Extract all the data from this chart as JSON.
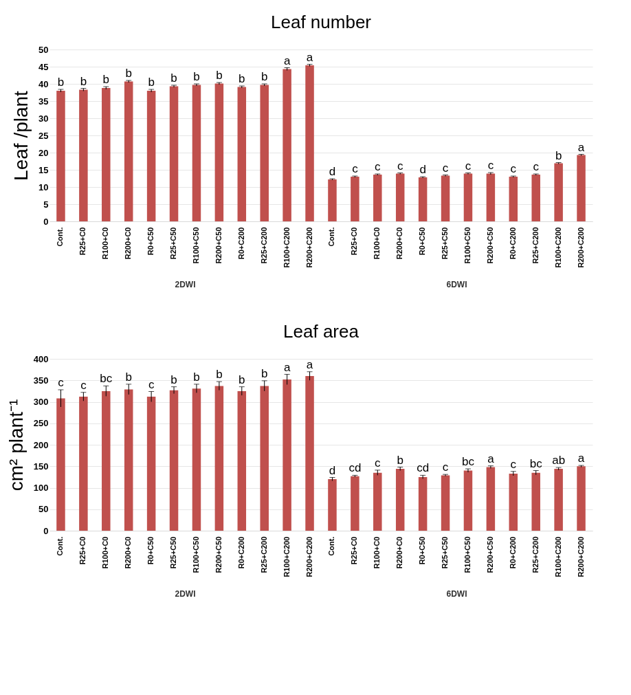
{
  "chart_data": [
    {
      "type": "bar",
      "title": "Leaf number",
      "ylabel": "Leaf /plant",
      "categories": [
        "Cont.",
        "R25+C0",
        "R100+C0",
        "R200+C0",
        "R0+C50",
        "R25+C50",
        "R100+C50",
        "R200+C50",
        "R0+C200",
        "R25+C200",
        "R100+C200",
        "R200+C200",
        "Cont.",
        "R25+C0",
        "R100+C0",
        "R200+C0",
        "R0+C50",
        "R25+C50",
        "R100+C50",
        "R200+C50",
        "R0+C200",
        "R25+C200",
        "R100+C200",
        "R200+C200"
      ],
      "values": [
        38.0,
        38.3,
        38.8,
        40.7,
        38.0,
        39.3,
        39.7,
        40.1,
        39.1,
        39.7,
        44.3,
        45.4,
        12.2,
        13.0,
        13.6,
        13.9,
        12.8,
        13.3,
        13.9,
        13.9,
        13.0,
        13.6,
        16.9,
        19.3
      ],
      "errors": [
        0.4,
        0.4,
        0.4,
        0.3,
        0.4,
        0.3,
        0.3,
        0.3,
        0.3,
        0.3,
        0.4,
        0.3,
        0.2,
        0.2,
        0.2,
        0.2,
        0.2,
        0.2,
        0.2,
        0.3,
        0.2,
        0.2,
        0.2,
        0.2
      ],
      "value_labels": [
        "b",
        "b",
        "b",
        "b",
        "b",
        "b",
        "b",
        "b",
        "b",
        "b",
        "a",
        "a",
        "d",
        "c",
        "c",
        "c",
        "d",
        "c",
        "c",
        "c",
        "c",
        "c",
        "b",
        "a"
      ],
      "annotations": [
        "2DWI",
        "6DWI"
      ],
      "color": "#c0504d",
      "ylim": [
        0,
        50
      ],
      "yticks": [
        0,
        5,
        10,
        15,
        20,
        25,
        30,
        35,
        40,
        45,
        50
      ],
      "grid": "y"
    },
    {
      "type": "bar",
      "title": "Leaf area",
      "ylabel": "cm² plant⁻¹",
      "categories": [
        "Cont.",
        "R25+C0",
        "R100+C0",
        "R200+C0",
        "R0+C50",
        "R25+C50",
        "R100+C50",
        "R200+C50",
        "R0+C200",
        "R25+C200",
        "R100+C200",
        "R200+C200",
        "Cont.",
        "R25+C0",
        "R100+C0",
        "R200+C0",
        "R0+C50",
        "R25+C50",
        "R100+C50",
        "R200+C50",
        "R0+C200",
        "R25+C200",
        "R100+C200",
        "R200+C200"
      ],
      "values": [
        308,
        312,
        325,
        329,
        312,
        327,
        331,
        337,
        325,
        337,
        352,
        360,
        120,
        127,
        135,
        144,
        125,
        129,
        140,
        148,
        133,
        135,
        144,
        150
      ],
      "errors": [
        20,
        10,
        12,
        12,
        12,
        8,
        10,
        10,
        10,
        12,
        12,
        10,
        4,
        2,
        6,
        4,
        4,
        2,
        4,
        3,
        5,
        5,
        3,
        2
      ],
      "value_labels": [
        "c",
        "c",
        "bc",
        "b",
        "c",
        "b",
        "b",
        "b",
        "b",
        "b",
        "a",
        "a",
        "d",
        "cd",
        "c",
        "b",
        "cd",
        "c",
        "bc",
        "a",
        "c",
        "bc",
        "ab",
        "a"
      ],
      "annotations": [
        "2DWI",
        "6DWI"
      ],
      "color": "#c0504d",
      "ylim": [
        0,
        400
      ],
      "yticks": [
        0,
        50,
        100,
        150,
        200,
        250,
        300,
        350,
        400
      ],
      "grid": "y"
    }
  ]
}
